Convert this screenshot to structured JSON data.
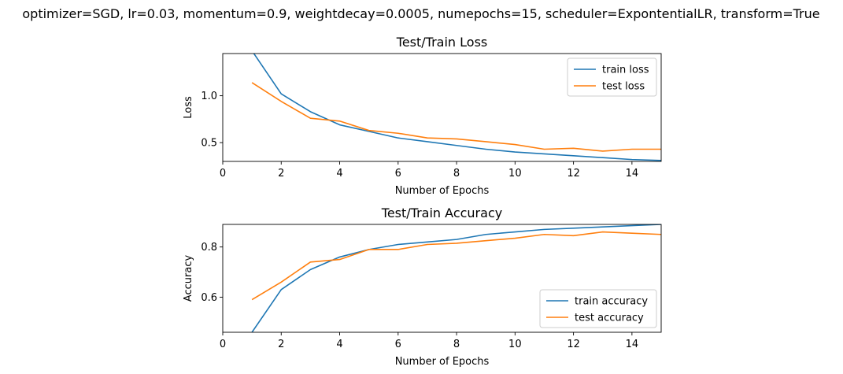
{
  "suptitle": "optimizer=SGD, lr=0.03, momentum=0.9, weightdecay=0.0005, numepochs=15, scheduler=ExpontentialLR, transform=True",
  "colors": {
    "train": "#1f77b4",
    "test": "#ff7f0e"
  },
  "chart_data": [
    {
      "type": "line",
      "title": "Test/Train Loss",
      "xlabel": "Number of Epochs",
      "ylabel": "Loss",
      "xlim": [
        0,
        15
      ],
      "ylim": [
        0.3,
        1.45
      ],
      "xticks": [
        0,
        2,
        4,
        6,
        8,
        10,
        12,
        14
      ],
      "xtick_labels": [
        "0",
        "2",
        "4",
        "6",
        "8",
        "10",
        "12",
        "14"
      ],
      "yticks": [
        0.5,
        1.0
      ],
      "ytick_labels": [
        "0.5",
        "1.0"
      ],
      "legend": "top-right",
      "x": [
        1,
        2,
        3,
        4,
        5,
        6,
        7,
        8,
        9,
        10,
        11,
        12,
        13,
        14,
        15
      ],
      "series": [
        {
          "name": "train loss",
          "values": [
            1.48,
            1.02,
            0.83,
            0.69,
            0.62,
            0.55,
            0.51,
            0.47,
            0.43,
            0.4,
            0.38,
            0.36,
            0.34,
            0.32,
            0.31
          ]
        },
        {
          "name": "test loss",
          "values": [
            1.14,
            0.94,
            0.76,
            0.73,
            0.63,
            0.6,
            0.55,
            0.54,
            0.51,
            0.48,
            0.43,
            0.44,
            0.41,
            0.43,
            0.43
          ]
        }
      ]
    },
    {
      "type": "line",
      "title": "Test/Train Accuracy",
      "xlabel": "Number of Epochs",
      "ylabel": "Accuracy",
      "xlim": [
        0,
        15
      ],
      "ylim": [
        0.46,
        0.89
      ],
      "xticks": [
        0,
        2,
        4,
        6,
        8,
        10,
        12,
        14
      ],
      "xtick_labels": [
        "0",
        "2",
        "4",
        "6",
        "8",
        "10",
        "12",
        "14"
      ],
      "yticks": [
        0.6,
        0.8
      ],
      "ytick_labels": [
        "0.6",
        "0.8"
      ],
      "legend": "bottom-right",
      "x": [
        1,
        2,
        3,
        4,
        5,
        6,
        7,
        8,
        9,
        10,
        11,
        12,
        13,
        14,
        15
      ],
      "series": [
        {
          "name": "train accuracy",
          "values": [
            0.46,
            0.63,
            0.71,
            0.76,
            0.79,
            0.81,
            0.82,
            0.83,
            0.85,
            0.86,
            0.87,
            0.875,
            0.88,
            0.885,
            0.89
          ]
        },
        {
          "name": "test accuracy",
          "values": [
            0.59,
            0.66,
            0.74,
            0.75,
            0.79,
            0.79,
            0.81,
            0.815,
            0.825,
            0.835,
            0.85,
            0.845,
            0.86,
            0.855,
            0.85
          ]
        }
      ]
    }
  ]
}
